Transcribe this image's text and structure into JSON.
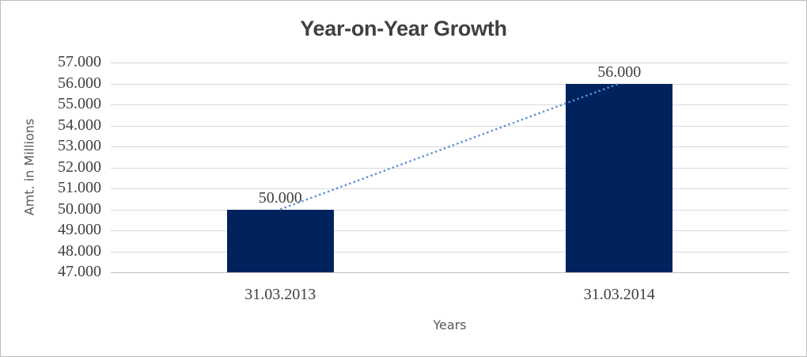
{
  "frame": {
    "background": "#FFFFFF",
    "border_color": "#BDBDBD"
  },
  "chart_data": {
    "type": "bar",
    "title": "Year-on-Year Growth",
    "xlabel": "Years",
    "ylabel": "Amt. in Millions",
    "categories": [
      "31.03.2013",
      "31.03.2014"
    ],
    "values": [
      50000,
      56000
    ],
    "value_labels": [
      "50.000",
      "56.000"
    ],
    "ylim": [
      47000,
      57000
    ],
    "ytick_step": 1000,
    "ytick_labels_top_to_bottom": [
      "57.000",
      "56.000",
      "55.000",
      "54.000",
      "53.000",
      "52.000",
      "51.000",
      "50.000",
      "49.000",
      "48.000",
      "47.000"
    ],
    "grid": true,
    "legend": false,
    "bar_color": "#00235E",
    "trendline": {
      "present": true,
      "style": "dotted",
      "color": "#5C8FD6",
      "from": "top of first bar",
      "to": "top of second bar"
    },
    "colors": {
      "gridline": "#D9D9D9",
      "axis_line": "#BFBFBF",
      "title_text": "#404040",
      "tick_text": "#404040",
      "axis_title_text": "#595959"
    }
  }
}
